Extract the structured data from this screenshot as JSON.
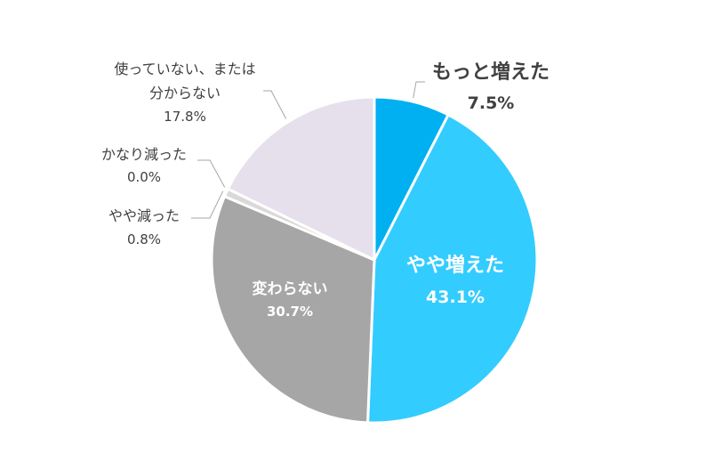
{
  "chart_data": {
    "type": "pie",
    "title": "",
    "start_angle_deg": 0,
    "direction": "clockwise",
    "slices": [
      {
        "name": "もっと増えた",
        "value": 7.5,
        "value_label": "7.5%",
        "color": "#00B0F0"
      },
      {
        "name": "やや増えた",
        "value": 43.1,
        "value_label": "43.1%",
        "color": "#33CCFF"
      },
      {
        "name": "変わらない",
        "value": 30.7,
        "value_label": "30.7%",
        "color": "#A6A6A6"
      },
      {
        "name": "やや減った",
        "value": 0.8,
        "value_label": "0.8%",
        "color": "#D9D9D9"
      },
      {
        "name": "かなり減った",
        "value": 0.0,
        "value_label": "0.0%",
        "color": "#BFBFBF"
      },
      {
        "name": "使っていない、または分からない",
        "name_lines": [
          "使っていない、または",
          "分からない"
        ],
        "value": 17.8,
        "value_label": "17.8%",
        "color": "#E6E0EC"
      }
    ]
  }
}
